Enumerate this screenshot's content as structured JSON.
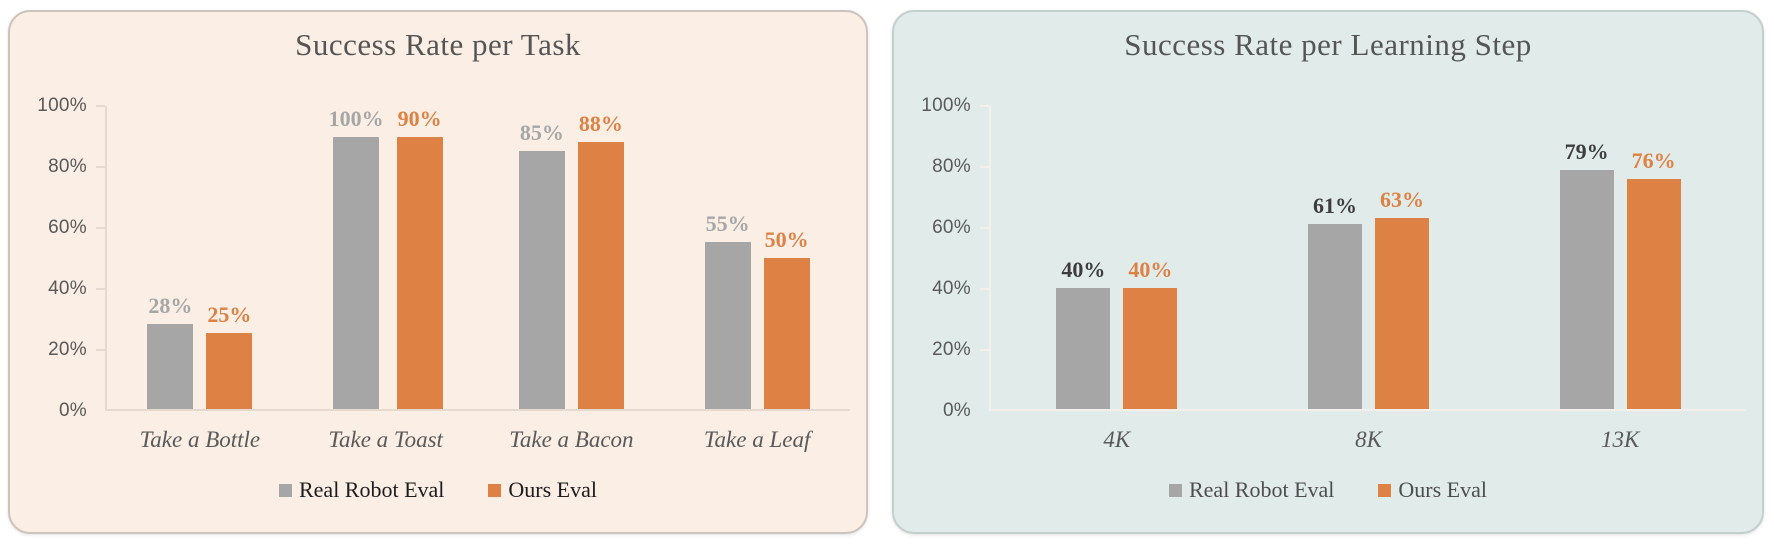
{
  "page": {
    "background": "#ffffff"
  },
  "panels": [
    {
      "background": "#faeee5",
      "border_color": "#ccc3bc",
      "axis_color": "#e6d9cf",
      "title_color": "#555555",
      "tick_label_color": "#595959",
      "category_color": "#595959",
      "legend_text_color": "#1c1c1c"
    },
    {
      "background": "#e1ecea",
      "border_color": "#c3cfcd",
      "axis_color": "#f4efeb",
      "title_color": "#555555",
      "tick_label_color": "#595959",
      "category_color": "#595959",
      "legend_text_color": "#4d4d4d"
    }
  ],
  "chart_data": [
    {
      "type": "bar",
      "title": "Success Rate per Task",
      "categories": [
        "Take a Bottle",
        "Take a Toast",
        "Take a Bacon",
        "Take a Leaf"
      ],
      "series": [
        {
          "name": "Real Robot Eval",
          "color": "#a6a6a6",
          "label_color": "#a6a6a6",
          "values": [
            28,
            100,
            85,
            55
          ]
        },
        {
          "name": "Ours Eval",
          "color": "#dd8144",
          "label_color": "#dd8144",
          "values": [
            25,
            90,
            88,
            50
          ]
        }
      ],
      "value_suffix": "%",
      "xlabel": "",
      "ylabel": "",
      "ylim": [
        0,
        100
      ],
      "yticks": [
        "0%",
        "20%",
        "40%",
        "60%",
        "80%",
        "100%"
      ],
      "grid": false,
      "legend_position": "bottom"
    },
    {
      "type": "bar",
      "title": "Success Rate per Learning Step",
      "categories": [
        "4K",
        "8K",
        "13K"
      ],
      "series": [
        {
          "name": "Real Robot Eval",
          "color": "#a6a6a6",
          "label_color": "#3d3d3d",
          "values": [
            40,
            61,
            79
          ]
        },
        {
          "name": "Ours Eval",
          "color": "#dd8144",
          "label_color": "#dd8144",
          "values": [
            40,
            63,
            76
          ]
        }
      ],
      "value_suffix": "%",
      "xlabel": "",
      "ylabel": "",
      "ylim": [
        0,
        100
      ],
      "yticks": [
        "0%",
        "20%",
        "40%",
        "60%",
        "80%",
        "100%"
      ],
      "grid": false,
      "legend_position": "bottom"
    }
  ]
}
